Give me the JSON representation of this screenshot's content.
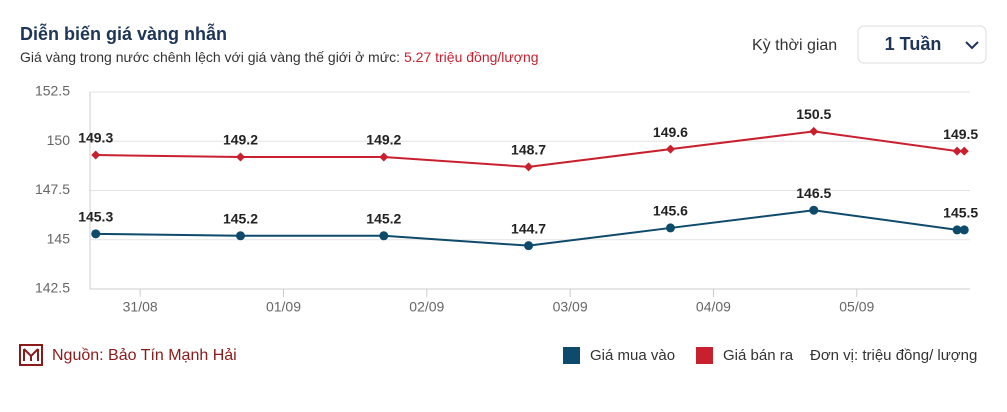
{
  "chart_data": {
    "type": "line",
    "title": "Diễn biến giá vàng nhẫn",
    "subtitle": "Giá vàng trong nước chênh lệch với giá vàng thế giới ở mức:",
    "subtitle_highlight": "5.27 triệu đồng/lượng",
    "period_label": "Kỳ thời gian",
    "period_value": "1 Tuần",
    "source": "Nguồn: Bảo Tín Mạnh Hải",
    "unit": "Đơn vị: triệu đồng/ lượng",
    "x": [
      -0.31,
      0.7,
      1.7,
      2.71,
      3.7,
      4.7,
      5.7,
      5.75
    ],
    "xlim": [
      -0.35,
      5.79
    ],
    "xticks": [
      {
        "value": 0,
        "label": "31/08"
      },
      {
        "value": 1,
        "label": "01/09"
      },
      {
        "value": 2,
        "label": "02/09"
      },
      {
        "value": 3,
        "label": "03/09"
      },
      {
        "value": 4,
        "label": "04/09"
      },
      {
        "value": 5,
        "label": "05/09"
      }
    ],
    "ylim": [
      142.5,
      152.5
    ],
    "yticks": [
      142.5,
      145,
      147.5,
      150,
      152.5
    ],
    "grid": true,
    "series": [
      {
        "name": "Giá mua vào",
        "color": "#0e4a6b",
        "marker": "circle",
        "values": [
          145.3,
          145.2,
          145.2,
          144.7,
          145.6,
          146.5,
          145.5,
          145.5
        ]
      },
      {
        "name": "Giá bán ra",
        "color": "#c8202f",
        "marker": "diamond",
        "values": [
          149.3,
          149.2,
          149.2,
          148.7,
          149.6,
          150.5,
          149.5,
          149.5
        ]
      }
    ]
  }
}
